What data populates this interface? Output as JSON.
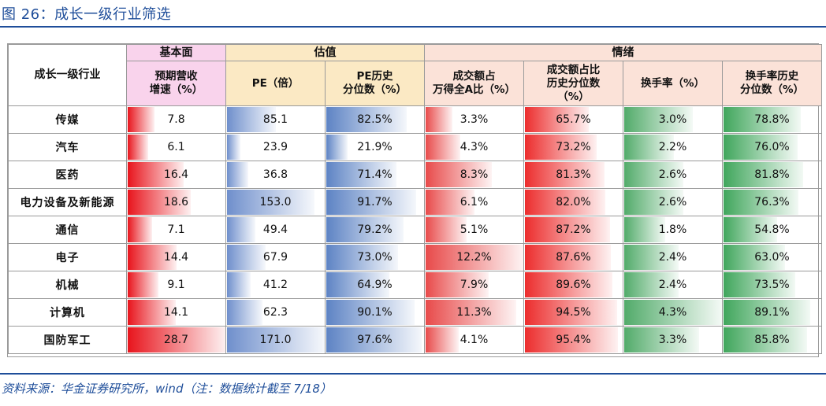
{
  "figure": {
    "title": "图 26：成长一级行业筛选",
    "source": "资料来源：华金证券研究所，wind（注：数据统计截至 7/18）"
  },
  "table": {
    "groups": {
      "industry": "成长一级行业",
      "growth": "基本面",
      "valuation": "估值",
      "sentiment": "情绪"
    },
    "columns": [
      {
        "key": "rev",
        "label": "预期营收\n增速（%）",
        "color": "#e8141c",
        "max": 28.7
      },
      {
        "key": "pe",
        "label": "PE（倍）",
        "color": "#6f8fcc",
        "max": 171.0
      },
      {
        "key": "pe_pct",
        "label": "PE历史\n分位数（%）",
        "color": "#5d83c4",
        "max": 100
      },
      {
        "key": "turn_share",
        "label": "成交额占\n万得全A比（%）",
        "color": "#e84a4a",
        "max": 12.2
      },
      {
        "key": "turn_pct",
        "label": "成交额占比\n历史分位数\n（%）",
        "color": "#ec2d2d",
        "max": 100
      },
      {
        "key": "tr",
        "label": "换手率（%）",
        "color": "#52ab6a",
        "max": 4.3
      },
      {
        "key": "tr_pct",
        "label": "换手率历史\n分位数（%）",
        "color": "#40a65c",
        "max": 100
      }
    ],
    "rows": [
      {
        "name": "传媒",
        "rev": 7.8,
        "pe": 85.1,
        "pe_pct": 82.5,
        "turn_share": 3.3,
        "turn_pct": 65.7,
        "tr": 3.0,
        "tr_pct": 78.8,
        "d": {
          "rev": "7.8",
          "pe": "85.1",
          "pe_pct": "82.5%",
          "turn_share": "3.3%",
          "turn_pct": "65.7%",
          "tr": "3.0%",
          "tr_pct": "78.8%"
        }
      },
      {
        "name": "汽车",
        "rev": 6.1,
        "pe": 23.9,
        "pe_pct": 21.9,
        "turn_share": 4.3,
        "turn_pct": 73.2,
        "tr": 2.2,
        "tr_pct": 76.0,
        "d": {
          "rev": "6.1",
          "pe": "23.9",
          "pe_pct": "21.9%",
          "turn_share": "4.3%",
          "turn_pct": "73.2%",
          "tr": "2.2%",
          "tr_pct": "76.0%"
        }
      },
      {
        "name": "医药",
        "rev": 16.4,
        "pe": 36.8,
        "pe_pct": 71.4,
        "turn_share": 8.3,
        "turn_pct": 81.3,
        "tr": 2.6,
        "tr_pct": 81.8,
        "d": {
          "rev": "16.4",
          "pe": "36.8",
          "pe_pct": "71.4%",
          "turn_share": "8.3%",
          "turn_pct": "81.3%",
          "tr": "2.6%",
          "tr_pct": "81.8%"
        }
      },
      {
        "name": "电力设备及新能源",
        "rev": 18.6,
        "pe": 153.0,
        "pe_pct": 91.7,
        "turn_share": 6.1,
        "turn_pct": 82.0,
        "tr": 2.6,
        "tr_pct": 76.3,
        "d": {
          "rev": "18.6",
          "pe": "153.0",
          "pe_pct": "91.7%",
          "turn_share": "6.1%",
          "turn_pct": "82.0%",
          "tr": "2.6%",
          "tr_pct": "76.3%"
        }
      },
      {
        "name": "通信",
        "rev": 7.1,
        "pe": 49.4,
        "pe_pct": 79.2,
        "turn_share": 5.1,
        "turn_pct": 87.2,
        "tr": 1.8,
        "tr_pct": 54.8,
        "d": {
          "rev": "7.1",
          "pe": "49.4",
          "pe_pct": "79.2%",
          "turn_share": "5.1%",
          "turn_pct": "87.2%",
          "tr": "1.8%",
          "tr_pct": "54.8%"
        }
      },
      {
        "name": "电子",
        "rev": 14.4,
        "pe": 67.9,
        "pe_pct": 73.0,
        "turn_share": 12.2,
        "turn_pct": 87.6,
        "tr": 2.4,
        "tr_pct": 63.0,
        "d": {
          "rev": "14.4",
          "pe": "67.9",
          "pe_pct": "73.0%",
          "turn_share": "12.2%",
          "turn_pct": "87.6%",
          "tr": "2.4%",
          "tr_pct": "63.0%"
        }
      },
      {
        "name": "机械",
        "rev": 9.1,
        "pe": 41.2,
        "pe_pct": 64.9,
        "turn_share": 7.9,
        "turn_pct": 89.6,
        "tr": 2.4,
        "tr_pct": 73.5,
        "d": {
          "rev": "9.1",
          "pe": "41.2",
          "pe_pct": "64.9%",
          "turn_share": "7.9%",
          "turn_pct": "89.6%",
          "tr": "2.4%",
          "tr_pct": "73.5%"
        }
      },
      {
        "name": "计算机",
        "rev": 14.1,
        "pe": 62.3,
        "pe_pct": 90.1,
        "turn_share": 11.3,
        "turn_pct": 94.5,
        "tr": 4.3,
        "tr_pct": 89.1,
        "d": {
          "rev": "14.1",
          "pe": "62.3",
          "pe_pct": "90.1%",
          "turn_share": "11.3%",
          "turn_pct": "94.5%",
          "tr": "4.3%",
          "tr_pct": "89.1%"
        }
      },
      {
        "name": "国防军工",
        "rev": 28.7,
        "pe": 171.0,
        "pe_pct": 97.6,
        "turn_share": 4.1,
        "turn_pct": 95.4,
        "tr": 3.3,
        "tr_pct": 85.8,
        "d": {
          "rev": "28.7",
          "pe": "171.0",
          "pe_pct": "97.6%",
          "turn_share": "4.1%",
          "turn_pct": "95.4%",
          "tr": "3.3%",
          "tr_pct": "85.8%"
        }
      }
    ]
  }
}
